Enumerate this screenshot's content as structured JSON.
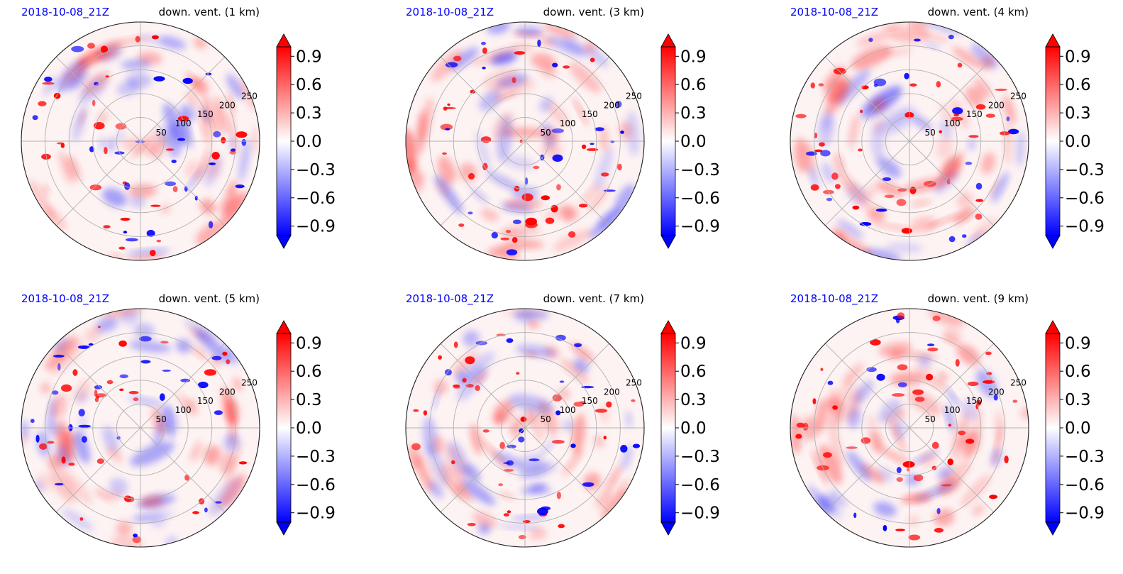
{
  "chart_data": [
    {
      "type": "heatmap",
      "projection": "polar",
      "title_left": "2018-10-08_21Z",
      "title_right": "down. vent. (1 km)",
      "radial_ticks": [
        "50",
        "100",
        "150",
        "200",
        "250"
      ],
      "colorbar": {
        "ticks": [
          "0.9",
          "0.6",
          "0.3",
          "0.0",
          "−0.3",
          "−0.6",
          "−0.9"
        ],
        "vmin": -1.0,
        "vmax": 1.0,
        "cmap": "bwr",
        "extend": "both"
      }
    },
    {
      "type": "heatmap",
      "projection": "polar",
      "title_left": "2018-10-08_21Z",
      "title_right": "down. vent. (3 km)",
      "radial_ticks": [
        "50",
        "100",
        "150",
        "200",
        "250"
      ],
      "colorbar": {
        "ticks": [
          "0.9",
          "0.6",
          "0.3",
          "0.0",
          "−0.3",
          "−0.6",
          "−0.9"
        ],
        "vmin": -1.0,
        "vmax": 1.0,
        "cmap": "bwr",
        "extend": "both"
      }
    },
    {
      "type": "heatmap",
      "projection": "polar",
      "title_left": "2018-10-08_21Z",
      "title_right": "down. vent. (4 km)",
      "radial_ticks": [
        "50",
        "100",
        "150",
        "200",
        "250"
      ],
      "colorbar": {
        "ticks": [
          "0.9",
          "0.6",
          "0.3",
          "0.0",
          "−0.3",
          "−0.6",
          "−0.9"
        ],
        "vmin": -1.0,
        "vmax": 1.0,
        "cmap": "bwr",
        "extend": "both"
      }
    },
    {
      "type": "heatmap",
      "projection": "polar",
      "title_left": "2018-10-08_21Z",
      "title_right": "down. vent. (5 km)",
      "radial_ticks": [
        "50",
        "100",
        "150",
        "200",
        "250"
      ],
      "colorbar": {
        "ticks": [
          "0.9",
          "0.6",
          "0.3",
          "0.0",
          "−0.3",
          "−0.6",
          "−0.9"
        ],
        "vmin": -1.0,
        "vmax": 1.0,
        "cmap": "bwr",
        "extend": "both"
      }
    },
    {
      "type": "heatmap",
      "projection": "polar",
      "title_left": "2018-10-08_21Z",
      "title_right": "down. vent. (7 km)",
      "radial_ticks": [
        "50",
        "100",
        "150",
        "200",
        "250"
      ],
      "colorbar": {
        "ticks": [
          "0.9",
          "0.6",
          "0.3",
          "0.0",
          "−0.3",
          "−0.6",
          "−0.9"
        ],
        "vmin": -1.0,
        "vmax": 1.0,
        "cmap": "bwr",
        "extend": "both"
      }
    },
    {
      "type": "heatmap",
      "projection": "polar",
      "title_left": "2018-10-08_21Z",
      "title_right": "down. vent. (9 km)",
      "radial_ticks": [
        "50",
        "100",
        "150",
        "200",
        "250"
      ],
      "colorbar": {
        "ticks": [
          "0.9",
          "0.6",
          "0.3",
          "0.0",
          "−0.3",
          "−0.6",
          "−0.9"
        ],
        "vmin": -1.0,
        "vmax": 1.0,
        "cmap": "bwr",
        "extend": "both"
      }
    }
  ],
  "colors": {
    "positive": "#ff0000",
    "negative": "#0000ff",
    "neutral": "#ffffff",
    "title_left": "#0000ff",
    "grid": "#b0b0b0"
  }
}
